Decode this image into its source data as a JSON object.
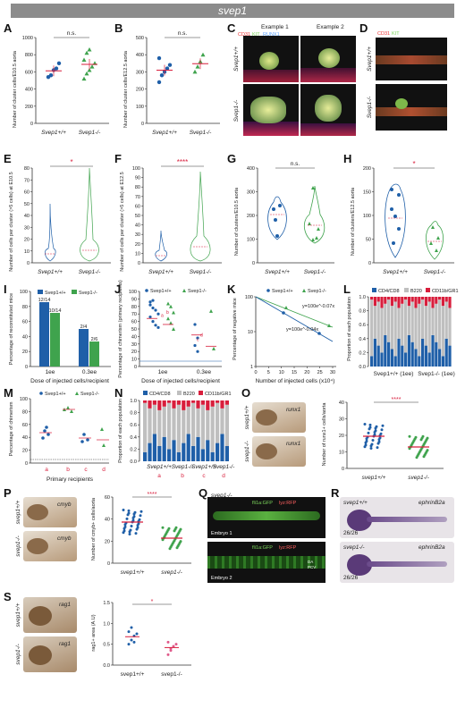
{
  "banner": "svep1",
  "groups": {
    "wt": "Svep1+/+",
    "ko": "Svep1-/-",
    "wt_l": "svep1+/+",
    "ko_l": "svep1-/-"
  },
  "stats": {
    "ns": "n.s.",
    "star": "*",
    "four": "****"
  },
  "colors": {
    "blue": "#1f5fa8",
    "green": "#3fa34d",
    "red": "#d81e3c",
    "gray": "#bfbfbf",
    "pink": "#e05a8a"
  },
  "panels": {
    "A": {
      "letter": "A",
      "ylabel": "Number of cluster cells/E10.5 aorta",
      "yticks": [
        "0",
        "200",
        "400",
        "600",
        "800",
        "1000"
      ],
      "ylim": [
        0,
        1000
      ],
      "wt": [
        540,
        560,
        620,
        640,
        700
      ],
      "ko": [
        520,
        580,
        620,
        660,
        700,
        740,
        820,
        860
      ]
    },
    "B": {
      "letter": "B",
      "ylabel": "Number of cluster cells/E12.5 aorta",
      "yticks": [
        "0",
        "100",
        "200",
        "300",
        "400",
        "500"
      ],
      "ylim": [
        0,
        500
      ],
      "wt": [
        240,
        280,
        300,
        320,
        340,
        380
      ],
      "ko": [
        300,
        330,
        360,
        400
      ]
    },
    "C": {
      "letter": "C",
      "legend": [
        "CD31",
        "KIT",
        "RUNX1"
      ],
      "ex1": "Example 1",
      "ex2": "Example 2"
    },
    "D": {
      "letter": "D",
      "legend": [
        "CD31",
        "KIT"
      ]
    },
    "E": {
      "letter": "E",
      "ylabel": "Number of cells per cluster (>5 cells) at E10.5",
      "yticks": [
        "0",
        "10",
        "20",
        "30",
        "40",
        "50",
        "60",
        "70",
        "80"
      ]
    },
    "F": {
      "letter": "F",
      "ylabel": "Number of cells per cluster (>5 cells) at E12.5",
      "yticks": [
        "0",
        "10",
        "20",
        "30",
        "40",
        "50",
        "60",
        "70",
        "80",
        "90",
        "100"
      ]
    },
    "G": {
      "letter": "G",
      "ylabel": "Number of clusters/E10.5 aorta",
      "yticks": [
        "0",
        "100",
        "200",
        "300",
        "400"
      ]
    },
    "H": {
      "letter": "H",
      "ylabel": "Number of clusters/E12.5 aorta",
      "yticks": [
        "0",
        "50",
        "100",
        "150",
        "200"
      ]
    },
    "I": {
      "letter": "I",
      "ylabel": "Percentage of reconstituted mice",
      "xlabel": "Dose of injected cells/recipient",
      "yticks": [
        "0",
        "20",
        "40",
        "60",
        "80",
        "100"
      ],
      "categories": [
        "1ee",
        "0.3ee"
      ],
      "wt": [
        85.7,
        50
      ],
      "ko": [
        71.4,
        33.3
      ],
      "labels_wt": [
        "12/14",
        "2/4"
      ],
      "labels_ko": [
        "10/14",
        "2/6"
      ]
    },
    "J": {
      "letter": "J",
      "ylabel": "Percentage of chimerism (primary recipients)",
      "xlabel": "Dose of injected cells/recipient",
      "yticks": [
        "0",
        "10",
        "20",
        "30",
        "40",
        "50",
        "60",
        "70",
        "80",
        "90",
        "100"
      ],
      "categories": [
        "1ee",
        "0.3ee"
      ],
      "letters": [
        "a",
        "b",
        "c",
        "d"
      ]
    },
    "K": {
      "letter": "K",
      "ylabel": "Percentage of negative mice",
      "xlabel": "Number of injected cells (x10⁴)",
      "yticks": [
        "1",
        "10",
        "100"
      ],
      "xticks": [
        "0",
        "5",
        "10",
        "15",
        "20",
        "25",
        "30"
      ],
      "eq1": "y=100e^-0.07x",
      "eq2": "y=100e^-0.04x"
    },
    "L": {
      "letter": "L",
      "ylabel": "Proportion of each population",
      "legend": [
        "CD4/CD8",
        "B220",
        "CD11b/GR1"
      ],
      "yticks": [
        "0.0",
        "0.2",
        "0.4",
        "0.6",
        "0.8",
        "1.0"
      ],
      "xlabel1": "Svep1+/+ (1ee)",
      "xlabel2": "Svep1-/- (1ee)"
    },
    "M": {
      "letter": "M",
      "ylabel": "Percentage of chimerism",
      "xlabel": "Primary recipients",
      "yticks": [
        "0",
        "20",
        "40",
        "60",
        "80",
        "100"
      ],
      "categories": [
        "a",
        "b",
        "c",
        "d"
      ]
    },
    "N": {
      "letter": "N",
      "ylabel": "Proportion of each population",
      "legend": [
        "CD4/CD8",
        "B220",
        "CD11b/GR1"
      ],
      "yticks": [
        "0.0",
        "0.2",
        "0.4",
        "0.6",
        "0.8",
        "1.0"
      ],
      "categories": [
        "a",
        "b",
        "c",
        "d"
      ]
    },
    "O": {
      "letter": "O",
      "gene": "runx1",
      "ylabel": "Number of runx1+ cells/aorta",
      "yticks": [
        "0",
        "10",
        "20",
        "30",
        "40"
      ]
    },
    "P": {
      "letter": "P",
      "gene": "cmyb",
      "ylabel": "Number of cmyb+ cells/aorta",
      "yticks": [
        "0",
        "20",
        "40",
        "60"
      ]
    },
    "Q": {
      "letter": "Q",
      "lab1": "fli1a:GFP",
      "lab2": "lyz:RFP",
      "emb1": "Embryo 1",
      "emb2": "Embryo 2",
      "da": "DA",
      "pcv": "PCV"
    },
    "R": {
      "letter": "R",
      "gene": "ephrinB2a",
      "count1": "26/26",
      "count2": "26/26"
    },
    "S": {
      "letter": "S",
      "gene": "rag1",
      "ylabel": "rag1+ area (A.U)",
      "yticks": [
        "0.0",
        "0.5",
        "1.0",
        "1.5"
      ]
    }
  }
}
